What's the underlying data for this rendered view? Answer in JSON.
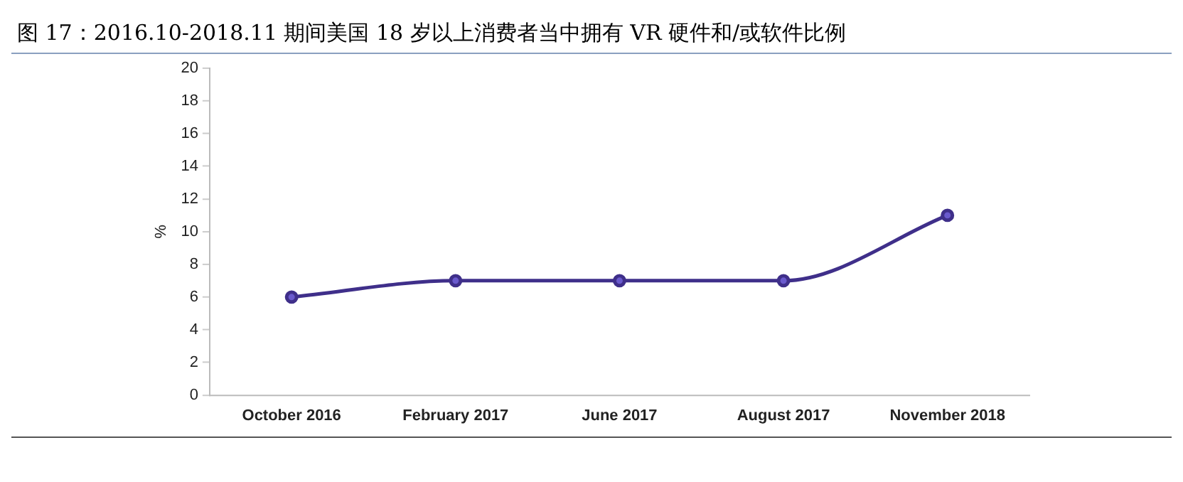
{
  "chart_data": {
    "type": "line",
    "title": "图 17：2016.10-2018.11 期间美国 18 岁以上消费者当中拥有 VR 硬件和/或软件比例",
    "ylabel": "%",
    "categories": [
      "October 2016",
      "February 2017",
      "June 2017",
      "August 2017",
      "November 2018"
    ],
    "series": [
      {
        "color": "#3f2f8a",
        "values": [
          6,
          7,
          7,
          7,
          11
        ]
      }
    ],
    "ylim": [
      0,
      20
    ],
    "yticks": [
      0,
      2,
      4,
      6,
      8,
      10,
      12,
      14,
      16,
      18,
      20
    ],
    "grid": false,
    "legend": false,
    "marker": "circle",
    "line_style": "solid"
  }
}
